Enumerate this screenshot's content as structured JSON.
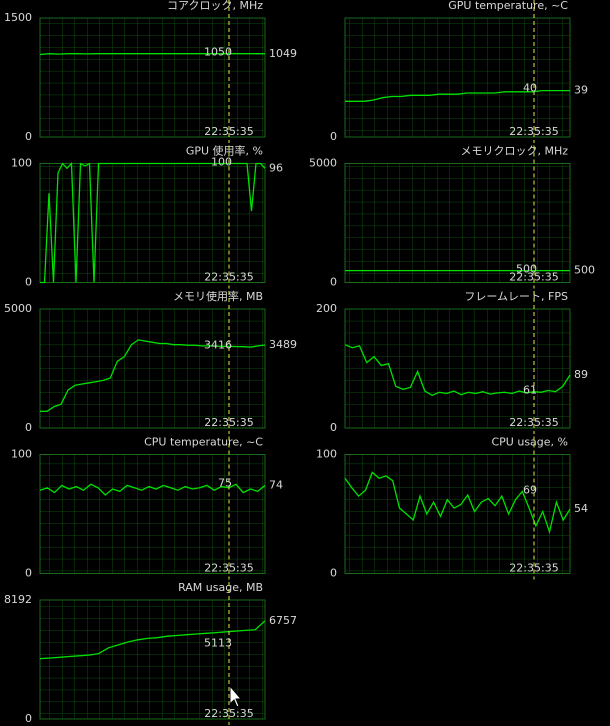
{
  "chart_data": [
    {
      "type": "line",
      "title": "コアクロック, MHz",
      "ylim": [
        0,
        1500
      ],
      "yticks": [
        0,
        1500
      ],
      "color": "#00e000",
      "cursor_time": "22:35:35",
      "cursor_value": 1050,
      "current_value": 1049,
      "values": [
        1040,
        1050,
        1045,
        1050,
        1050,
        1048,
        1050,
        1050,
        1050,
        1050,
        1050,
        1050,
        1050,
        1050,
        1050,
        1050,
        1050,
        1050,
        1050,
        1050,
        1050,
        1050,
        1050,
        1050,
        1049
      ]
    },
    {
      "type": "line",
      "title": "GPU temperature, ~C",
      "ylim": [
        0,
        100
      ],
      "yticks": [
        0
      ],
      "color": "#00e000",
      "cursor_time": "22:35:35",
      "cursor_value": 40,
      "current_value": 39,
      "values": [
        30,
        30,
        30,
        31,
        33,
        34,
        34,
        35,
        35,
        35,
        36,
        36,
        36,
        37,
        37,
        37,
        37,
        38,
        38,
        38,
        38,
        39,
        39,
        39,
        39
      ]
    },
    {
      "type": "line",
      "title": "GPU 使用率, %",
      "ylim": [
        0,
        100
      ],
      "yticks": [
        0,
        100
      ],
      "color": "#00e000",
      "cursor_time": "22:35:35",
      "cursor_value": 100,
      "current_value": 96,
      "values": [
        0,
        0,
        75,
        0,
        92,
        100,
        96,
        100,
        0,
        100,
        98,
        100,
        0,
        100,
        100,
        100,
        100,
        100,
        100,
        100,
        100,
        100,
        100,
        100,
        100,
        100,
        100,
        100,
        100,
        100,
        100,
        100,
        100,
        100,
        100,
        100,
        100,
        100,
        100,
        100,
        100,
        100,
        100,
        100,
        100,
        100,
        100,
        60,
        100,
        100,
        96
      ]
    },
    {
      "type": "line",
      "title": "メモリクロック, MHz",
      "ylim": [
        0,
        5000
      ],
      "yticks": [
        0,
        5000
      ],
      "color": "#00e000",
      "cursor_time": "22:35:35",
      "cursor_value": 500,
      "current_value": 500,
      "values": [
        500,
        500,
        500,
        500,
        500,
        500,
        500,
        500,
        500,
        500,
        500,
        500,
        500,
        500,
        500,
        500,
        500,
        500,
        500,
        500
      ]
    },
    {
      "type": "line",
      "title": "メモリ使用率, MB",
      "ylim": [
        0,
        5000
      ],
      "yticks": [
        0,
        5000
      ],
      "color": "#00e000",
      "cursor_time": "22:35:35",
      "cursor_value": 3416,
      "current_value": 3489,
      "values": [
        700,
        700,
        900,
        1000,
        1600,
        1800,
        1850,
        1900,
        1950,
        2000,
        2100,
        2800,
        3000,
        3500,
        3700,
        3650,
        3600,
        3550,
        3550,
        3500,
        3500,
        3480,
        3480,
        3450,
        3450,
        3440,
        3430,
        3430,
        3420,
        3416,
        3400,
        3450,
        3489
      ]
    },
    {
      "type": "line",
      "title": "フレームレート, FPS",
      "ylim": [
        0,
        200
      ],
      "yticks": [
        0,
        200
      ],
      "color": "#00e000",
      "cursor_time": "22:35:35",
      "cursor_value": 61,
      "current_value": 89,
      "values": [
        140,
        135,
        138,
        110,
        120,
        105,
        108,
        70,
        65,
        68,
        95,
        62,
        55,
        60,
        58,
        62,
        56,
        60,
        58,
        61,
        57,
        59,
        60,
        58,
        62,
        59,
        61,
        60,
        63,
        61,
        70,
        89
      ]
    },
    {
      "type": "line",
      "title": "CPU temperature, ~C",
      "ylim": [
        0,
        100
      ],
      "yticks": [
        0,
        100
      ],
      "color": "#00e000",
      "cursor_time": "22:35:35",
      "cursor_value": 75,
      "current_value": 74,
      "values": [
        70,
        72,
        68,
        74,
        71,
        73,
        70,
        75,
        72,
        66,
        71,
        69,
        74,
        72,
        70,
        73,
        71,
        74,
        72,
        70,
        73,
        71,
        72,
        74,
        70,
        73,
        72,
        75,
        68,
        71,
        69,
        74
      ]
    },
    {
      "type": "line",
      "title": "CPU usage, %",
      "ylim": [
        0,
        100
      ],
      "yticks": [
        0,
        100
      ],
      "color": "#00e000",
      "cursor_time": "22:35:35",
      "cursor_value": 69,
      "current_value": 54,
      "values": [
        80,
        72,
        65,
        70,
        85,
        80,
        82,
        78,
        55,
        50,
        45,
        65,
        50,
        60,
        48,
        62,
        55,
        58,
        66,
        52,
        60,
        63,
        57,
        65,
        50,
        62,
        69,
        55,
        40,
        52,
        35,
        60,
        45,
        54
      ]
    },
    {
      "type": "line",
      "title": "RAM usage, MB",
      "ylim": [
        0,
        8192
      ],
      "yticks": [
        0,
        8192
      ],
      "color": "#00e000",
      "cursor_time": "22:35:35",
      "cursor_value": 5113,
      "current_value": 6757,
      "values": [
        4150,
        4200,
        4250,
        4300,
        4350,
        4400,
        4500,
        4900,
        5100,
        5300,
        5450,
        5550,
        5600,
        5700,
        5750,
        5800,
        5850,
        5900,
        5950,
        6000,
        6050,
        6100,
        6150,
        6757
      ]
    }
  ]
}
